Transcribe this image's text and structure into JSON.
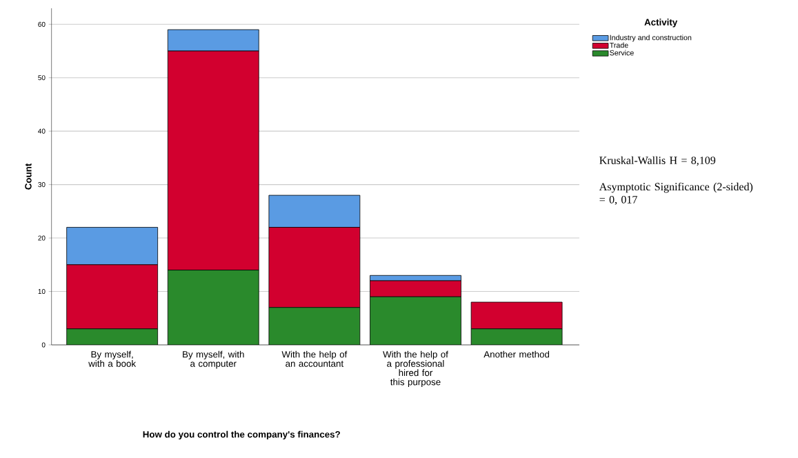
{
  "chart_data": {
    "type": "bar",
    "stacked": true,
    "xlabel": "How do you control the company's finances?",
    "ylabel": "Count",
    "legend_title": "Activity",
    "categories": [
      "By myself, with a book",
      "By myself, with a computer",
      "With the help of an accountant",
      "With the help of a professional hired for this purpose",
      "Another method"
    ],
    "series": [
      {
        "name": "Service",
        "color": "#2a8a2c",
        "values": [
          3,
          14,
          7,
          9,
          3
        ]
      },
      {
        "name": "Trade",
        "color": "#d2002f",
        "values": [
          12,
          41,
          15,
          3,
          5
        ]
      },
      {
        "name": "Industry and construction",
        "color": "#5a9be3",
        "values": [
          7,
          4,
          6,
          1,
          0
        ]
      }
    ],
    "ylim": [
      0,
      63
    ],
    "yticks": [
      0,
      10,
      20,
      30,
      40,
      50,
      60
    ],
    "grid": "y",
    "legend": "right",
    "annotations": [
      "Kruskal-Wallis H = 8,109",
      "Asymptotic Significance (2-sided) = 0, 017"
    ]
  }
}
